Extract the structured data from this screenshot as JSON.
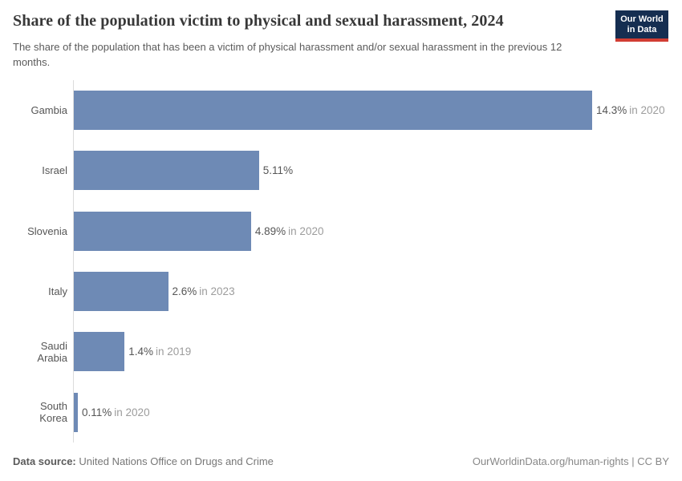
{
  "header": {
    "title": "Share of the population victim to physical and sexual harassment, 2024",
    "subtitle": "The share of the population that has been a victim of physical harassment and/or sexual harassment in the previous 12 months.",
    "logo": {
      "line1": "Our World",
      "line2": "in Data"
    }
  },
  "chart_data": {
    "type": "bar",
    "orientation": "horizontal",
    "title": "Share of the population victim to physical and sexual harassment, 2024",
    "subtitle": "The share of the population that has been a victim of physical harassment and/or sexual harassment in the previous 12 months.",
    "categories": [
      "Gambia",
      "Israel",
      "Slovenia",
      "Italy",
      "Saudi Arabia",
      "South Korea"
    ],
    "values": [
      14.3,
      5.11,
      4.89,
      2.6,
      1.4,
      0.11
    ],
    "value_labels": [
      "14.3%",
      "5.11%",
      "4.89%",
      "2.6%",
      "1.4%",
      "0.11%"
    ],
    "year_notes": [
      "in 2020",
      "",
      "in 2020",
      "in 2023",
      "in 2019",
      "in 2020"
    ],
    "xlim": [
      0,
      14.3
    ],
    "xlabel": "",
    "ylabel": "",
    "grid": false,
    "legend": "none",
    "bar_color": "#6e8ab5"
  },
  "footer": {
    "source_label": "Data source:",
    "source_value": "United Nations Office on Drugs and Crime",
    "credit": "OurWorldinData.org/human-rights | CC BY"
  },
  "colors": {
    "bar": "#6e8ab5",
    "axis_line": "#dcdcdc",
    "title_text": "#383838",
    "label_text": "#565656",
    "year_text": "#9c9c9c",
    "logo_navy": "#152e51",
    "logo_red": "#d13d33"
  }
}
